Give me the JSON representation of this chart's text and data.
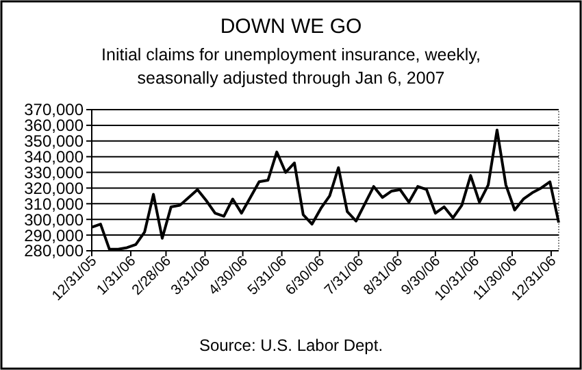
{
  "chart_data": {
    "type": "line",
    "title": "DOWN WE GO",
    "subtitle": "Initial claims for unemployment insurance, weekly, seasonally adjusted through Jan 6, 2007",
    "annotations": [
      "Source: U.S. Labor Dept."
    ],
    "x": [
      "2005-12-31",
      "2006-01-07",
      "2006-01-14",
      "2006-01-21",
      "2006-01-28",
      "2006-02-04",
      "2006-02-11",
      "2006-02-18",
      "2006-02-25",
      "2006-03-04",
      "2006-03-11",
      "2006-03-18",
      "2006-03-25",
      "2006-04-01",
      "2006-04-08",
      "2006-04-15",
      "2006-04-22",
      "2006-04-29",
      "2006-05-06",
      "2006-05-13",
      "2006-05-20",
      "2006-05-27",
      "2006-06-03",
      "2006-06-10",
      "2006-06-17",
      "2006-06-24",
      "2006-07-01",
      "2006-07-08",
      "2006-07-15",
      "2006-07-22",
      "2006-07-29",
      "2006-08-05",
      "2006-08-12",
      "2006-08-19",
      "2006-08-26",
      "2006-09-02",
      "2006-09-09",
      "2006-09-16",
      "2006-09-23",
      "2006-09-30",
      "2006-10-07",
      "2006-10-14",
      "2006-10-21",
      "2006-10-28",
      "2006-11-04",
      "2006-11-11",
      "2006-11-18",
      "2006-11-25",
      "2006-12-02",
      "2006-12-09",
      "2006-12-16",
      "2006-12-23",
      "2006-12-30",
      "2007-01-06"
    ],
    "series": [
      {
        "color": "#000000",
        "values": [
          295000,
          297000,
          281000,
          281000,
          282000,
          284000,
          292000,
          316000,
          288000,
          308000,
          309000,
          314000,
          319000,
          312000,
          304000,
          302000,
          313000,
          304000,
          314000,
          324000,
          325000,
          343000,
          330000,
          336000,
          303000,
          297000,
          307000,
          315000,
          333000,
          305000,
          299000,
          310000,
          321000,
          314000,
          318000,
          319000,
          311000,
          321000,
          319000,
          304000,
          308000,
          301000,
          309000,
          328000,
          311000,
          322000,
          357000,
          322000,
          306000,
          313000,
          317000,
          320000,
          324000,
          298000
        ]
      }
    ],
    "xlim": [
      "2005-12-31",
      "2007-01-06"
    ],
    "xticks": [
      {
        "value": "2005-12-31",
        "label": "12/31/05"
      },
      {
        "value": "2006-01-31",
        "label": "1/31/06"
      },
      {
        "value": "2006-02-28",
        "label": "2/28/06"
      },
      {
        "value": "2006-03-31",
        "label": "3/31/06"
      },
      {
        "value": "2006-04-30",
        "label": "4/30/06"
      },
      {
        "value": "2006-05-31",
        "label": "5/31/06"
      },
      {
        "value": "2006-06-30",
        "label": "6/30/06"
      },
      {
        "value": "2006-07-31",
        "label": "7/31/06"
      },
      {
        "value": "2006-08-31",
        "label": "8/31/06"
      },
      {
        "value": "2006-09-30",
        "label": "9/30/06"
      },
      {
        "value": "2006-10-31",
        "label": "10/31/06"
      },
      {
        "value": "2006-11-30",
        "label": "11/30/06"
      },
      {
        "value": "2006-12-31",
        "label": "12/31/06"
      }
    ],
    "ylim": [
      280000,
      370000
    ],
    "yticks": [
      {
        "value": 280000,
        "label": "280,000"
      },
      {
        "value": 290000,
        "label": "290,000"
      },
      {
        "value": 300000,
        "label": "300,000"
      },
      {
        "value": 310000,
        "label": "310,000"
      },
      {
        "value": 320000,
        "label": "320,000"
      },
      {
        "value": 330000,
        "label": "330,000"
      },
      {
        "value": 340000,
        "label": "340,000"
      },
      {
        "value": 350000,
        "label": "350,000"
      },
      {
        "value": 360000,
        "label": "360,000"
      },
      {
        "value": 370000,
        "label": "370,000"
      }
    ],
    "grid": "y",
    "marker": "none",
    "line_style": "solid"
  }
}
